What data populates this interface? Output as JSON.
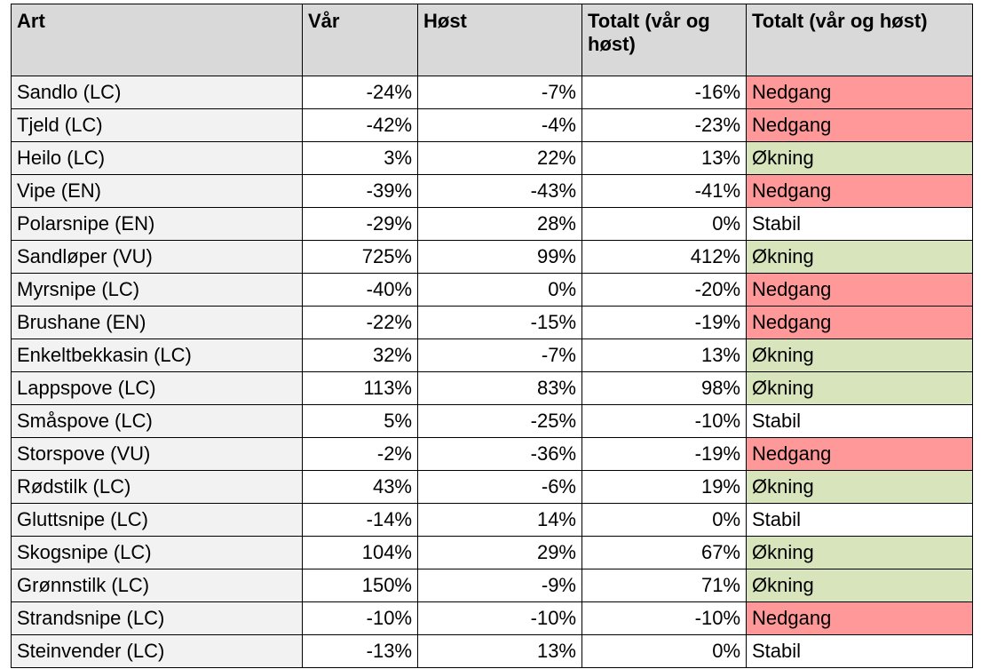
{
  "table": {
    "header": [
      "Art",
      "Vår",
      "Høst",
      "Totalt (vår og høst)",
      "Totalt (vår og høst)"
    ],
    "rows": [
      {
        "cells": [
          "Sandlo (LC)",
          "-24%",
          "-7%",
          "-16%",
          "Nedgang"
        ],
        "status_color": "#ff9999"
      },
      {
        "cells": [
          "Tjeld (LC)",
          "-42%",
          "-4%",
          "-23%",
          "Nedgang"
        ],
        "status_color": "#ff9999"
      },
      {
        "cells": [
          "Heilo (LC)",
          "3%",
          "22%",
          "13%",
          "Økning"
        ],
        "status_color": "#d8e4bc"
      },
      {
        "cells": [
          "Vipe (EN)",
          "-39%",
          "-43%",
          "-41%",
          "Nedgang"
        ],
        "status_color": "#ff9999"
      },
      {
        "cells": [
          "Polarsnipe (EN)",
          "-29%",
          "28%",
          "0%",
          "Stabil"
        ],
        "status_color": "#ffffff"
      },
      {
        "cells": [
          "Sandløper (VU)",
          "725%",
          "99%",
          "412%",
          "Økning"
        ],
        "status_color": "#d8e4bc"
      },
      {
        "cells": [
          "Myrsnipe (LC)",
          "-40%",
          "0%",
          "-20%",
          "Nedgang"
        ],
        "status_color": "#ff9999"
      },
      {
        "cells": [
          "Brushane (EN)",
          "-22%",
          "-15%",
          "-19%",
          "Nedgang"
        ],
        "status_color": "#ff9999"
      },
      {
        "cells": [
          "Enkeltbekkasin (LC)",
          "32%",
          "-7%",
          "13%",
          "Økning"
        ],
        "status_color": "#d8e4bc"
      },
      {
        "cells": [
          "Lappspove (LC)",
          "113%",
          "83%",
          "98%",
          "Økning"
        ],
        "status_color": "#d8e4bc"
      },
      {
        "cells": [
          "Småspove (LC)",
          "5%",
          "-25%",
          "-10%",
          "Stabil"
        ],
        "status_color": "#ffffff"
      },
      {
        "cells": [
          "Storspove (VU)",
          "-2%",
          "-36%",
          "-19%",
          "Nedgang"
        ],
        "status_color": "#ff9999"
      },
      {
        "cells": [
          "Rødstilk (LC)",
          "43%",
          "-6%",
          "19%",
          "Økning"
        ],
        "status_color": "#d8e4bc"
      },
      {
        "cells": [
          "Gluttsnipe (LC)",
          "-14%",
          "14%",
          "0%",
          "Stabil"
        ],
        "status_color": "#ffffff"
      },
      {
        "cells": [
          "Skogsnipe (LC)",
          "104%",
          "29%",
          "67%",
          "Økning"
        ],
        "status_color": "#d8e4bc"
      },
      {
        "cells": [
          "Grønnstilk (LC)",
          "150%",
          "-9%",
          "71%",
          "Økning"
        ],
        "status_color": "#d8e4bc"
      },
      {
        "cells": [
          "Strandsnipe (LC)",
          "-10%",
          "-10%",
          "-10%",
          "Nedgang"
        ],
        "status_color": "#ff9999"
      },
      {
        "cells": [
          "Steinvender (LC)",
          "-13%",
          "13%",
          "0%",
          "Stabil"
        ],
        "status_color": "#ffffff"
      }
    ]
  }
}
